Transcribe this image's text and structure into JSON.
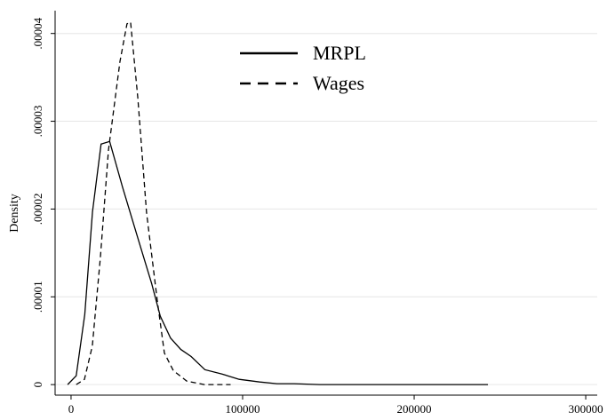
{
  "chart_data": {
    "type": "line",
    "y_label": "Density",
    "xlim": [
      -9300,
      306700
    ],
    "ylim": [
      -1.2e-06,
      4.26e-05
    ],
    "xticks": [
      0,
      100000,
      200000,
      300000
    ],
    "yticks": [
      {
        "value": 0,
        "label": "0"
      },
      {
        "value": 1e-05,
        "label": ".00001"
      },
      {
        "value": 2e-05,
        "label": ".00002"
      },
      {
        "value": 3e-05,
        "label": ".00003"
      },
      {
        "value": 4e-05,
        "label": ".00004"
      }
    ],
    "grid": true,
    "legend": "top",
    "series": [
      {
        "name": "MRPL",
        "color": "#000000",
        "dash": "solid",
        "x": [
          -2000,
          3000,
          8000,
          12500,
          17500,
          22500,
          30000,
          40000,
          47000,
          52000,
          58000,
          64000,
          70000,
          78000,
          88000,
          98000,
          110000,
          120000,
          130000,
          145000,
          170000,
          200000,
          243000
        ],
        "values": [
          0,
          1e-06,
          8e-06,
          1.97e-05,
          2.74e-05,
          2.77e-05,
          2.25e-05,
          1.6e-05,
          1.15e-05,
          7.8e-06,
          5.3e-06,
          4e-06,
          3.2e-06,
          1.7e-06,
          1.2e-06,
          6e-07,
          3e-07,
          1e-07,
          1e-07,
          0,
          0,
          0,
          0
        ]
      },
      {
        "name": "Wages",
        "color": "#000000",
        "dash": "dashed",
        "x": [
          3000,
          7800,
          12400,
          17100,
          21800,
          28500,
          32600,
          34700,
          38900,
          44000,
          50300,
          54400,
          59600,
          67400,
          77700,
          93000
        ],
        "values": [
          0,
          6e-07,
          4.4e-06,
          1.45e-05,
          2.67e-05,
          3.68e-05,
          4.11e-05,
          4.13e-05,
          3.27e-05,
          1.96e-05,
          9.5e-06,
          3.6e-06,
          1.6e-06,
          4e-07,
          0,
          0
        ]
      }
    ]
  }
}
